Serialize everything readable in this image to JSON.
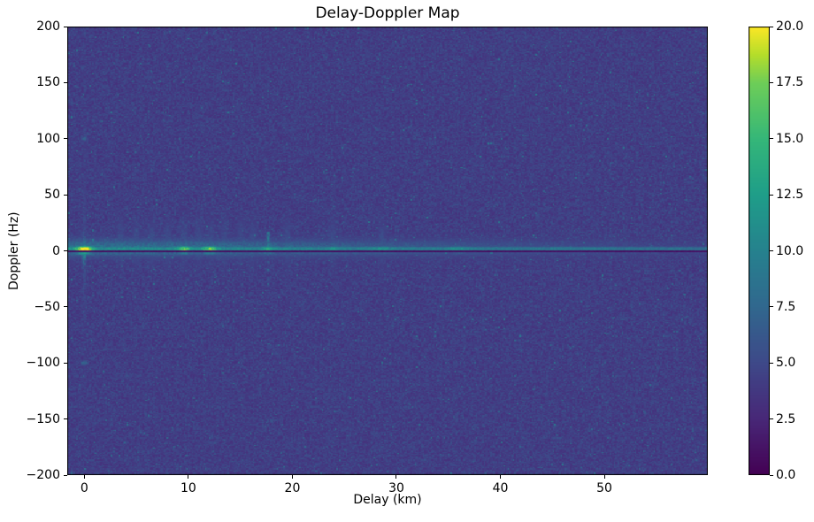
{
  "chart_data": {
    "type": "heatmap",
    "title": "Delay-Doppler Map",
    "xlabel": "Delay (km)",
    "ylabel": "Doppler (Hz)",
    "xlim": [
      -1.65,
      59.95
    ],
    "ylim": [
      -200,
      200
    ],
    "xticks": [
      0,
      10,
      20,
      30,
      40,
      50
    ],
    "xtick_labels": [
      "0",
      "10",
      "20",
      "30",
      "40",
      "50"
    ],
    "yticks": [
      200,
      150,
      100,
      50,
      0,
      -50,
      -100,
      -150,
      -200
    ],
    "ytick_labels": [
      "200",
      "150",
      "100",
      "50",
      "0",
      "−50",
      "−100",
      "−150",
      "−200"
    ],
    "grid": false,
    "legend": "none",
    "colorbar": {
      "position": "right",
      "min": 0,
      "max": 20,
      "ticks": [
        0,
        2.5,
        5,
        7.5,
        10,
        12.5,
        15,
        17.5,
        20
      ],
      "tick_labels": [
        "0.0",
        "2.5",
        "5.0",
        "7.5",
        "10.0",
        "12.5",
        "15.0",
        "17.5",
        "20.0"
      ]
    },
    "colormap": {
      "name": "viridis",
      "stops": [
        {
          "t": 0.0,
          "color": "#440154"
        },
        {
          "t": 0.125,
          "color": "#482878"
        },
        {
          "t": 0.25,
          "color": "#3e4989"
        },
        {
          "t": 0.375,
          "color": "#31688e"
        },
        {
          "t": 0.5,
          "color": "#26828e"
        },
        {
          "t": 0.625,
          "color": "#1f9e89"
        },
        {
          "t": 0.75,
          "color": "#35b779"
        },
        {
          "t": 0.875,
          "color": "#6ece58"
        },
        {
          "t": 0.9375,
          "color": "#b5de2b"
        },
        {
          "t": 1.0,
          "color": "#fde725"
        }
      ]
    },
    "noise_floor": {
      "mean_intensity": 4.2,
      "speckle_spread": 1.3
    },
    "features": {
      "clutter_ridge": {
        "kind": "zero-doppler-clutter-ridge",
        "doppler_center_hz": 1.5,
        "sigma_hz": 2.4,
        "base_intensity": 11.2,
        "intensity_slope_per_km": -0.05,
        "hotspots": [
          {
            "delay_km": 0,
            "intensity": 21,
            "sigma_km": 0.55
          },
          {
            "delay_km": 9.6,
            "intensity": 16.5,
            "sigma_km": 0.5
          },
          {
            "delay_km": 12.1,
            "intensity": 17,
            "sigma_km": 0.5
          },
          {
            "delay_km": 17.7,
            "intensity": 14,
            "sigma_km": 0.45
          },
          {
            "delay_km": 23.9,
            "intensity": 12,
            "sigma_km": 0.5
          },
          {
            "delay_km": 28.6,
            "intensity": 12,
            "sigma_km": 0.6
          },
          {
            "delay_km": 36,
            "intensity": 12.5,
            "sigma_km": 0.6
          },
          {
            "delay_km": 45.9,
            "intensity": 11,
            "sigma_km": 0.5
          }
        ]
      },
      "zero_notch": {
        "kind": "zero-doppler-notch",
        "doppler_range_hz": [
          -1.5,
          0.25
        ],
        "intensity": 1
      },
      "direct_path_stripe": {
        "kind": "direct-path-vertical-stripe",
        "delay_km": 0,
        "sigma_km": 0.22,
        "base_intensity": 3.4,
        "peak_intensity": 8.5,
        "sidelobes": [
          {
            "doppler_hz": 100,
            "intensity": 7
          },
          {
            "doppler_hz": -100,
            "intensity": 7.5
          }
        ]
      },
      "target_streak": {
        "kind": "dashed-target-streak",
        "delay_km": 17.7,
        "doppler_range_hz": [
          -38,
          17
        ],
        "intensity": 8.5,
        "dash_period_hz": 7
      },
      "sidelobe_smears": {
        "kind": "vertical-sidelobe-smears",
        "delays_km": [
          3.5,
          5,
          6.5,
          8,
          9.6,
          11,
          12.2,
          13.5,
          15,
          16.2,
          19.5,
          23.9,
          28.6
        ],
        "intensity": 2.2,
        "doppler_sigma_hz": 16
      }
    }
  }
}
